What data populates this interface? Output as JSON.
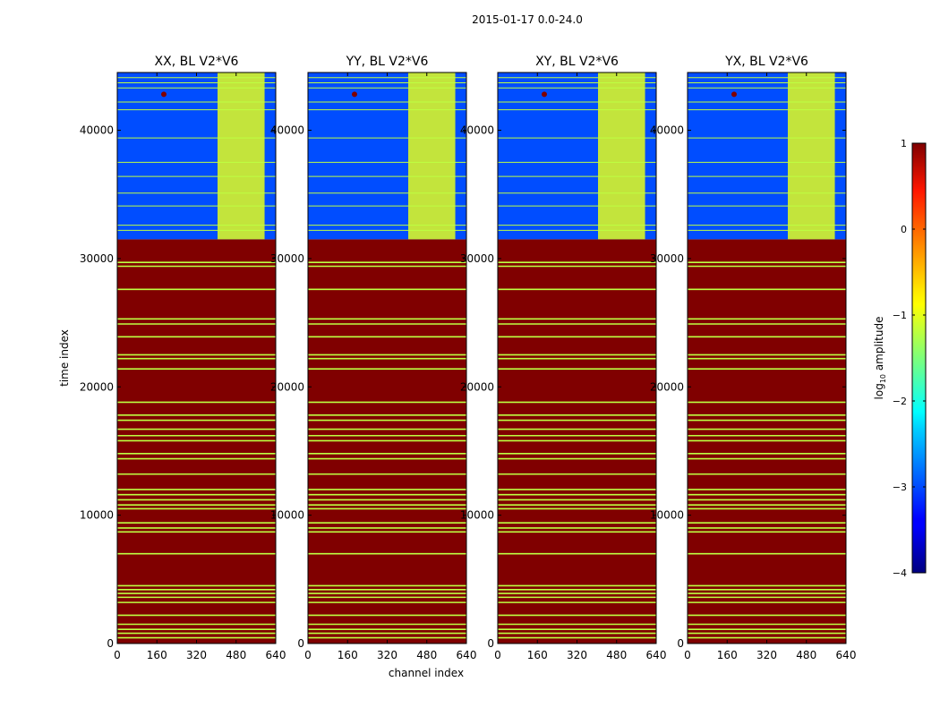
{
  "figure": {
    "suptitle": "2015-01-17 0.0-24.0"
  },
  "chart_data": {
    "type": "heatmap",
    "title": "2015-01-17 0.0-24.0",
    "xlabel": "channel index",
    "ylabel": "time index",
    "xlim": [
      0,
      640
    ],
    "ylim": [
      0,
      44500
    ],
    "x_ticks": [
      0,
      160,
      320,
      480,
      640
    ],
    "y_ticks": [
      0,
      10000,
      20000,
      30000,
      40000
    ],
    "x_tick_labels": [
      "0",
      "160",
      "320",
      "480",
      "640"
    ],
    "y_tick_labels": [
      "0",
      "10000",
      "20000",
      "30000",
      "40000"
    ],
    "panels": [
      {
        "name": "XX",
        "title": "XX, BL V2*V6"
      },
      {
        "name": "YY",
        "title": "YY, BL V2*V6"
      },
      {
        "name": "XY",
        "title": "XY, BL V2*V6"
      },
      {
        "name": "YX",
        "title": "YX, BL V2*V6"
      }
    ],
    "regions": {
      "saturated_time_range": [
        0,
        31500
      ],
      "saturated_log_amplitude": 1,
      "active_time_range": [
        31500,
        44500
      ],
      "background_log_amplitude": -3,
      "rfi_channel_range": [
        405,
        595
      ],
      "rfi_log_amplitude": -1,
      "rfi_spot_channel": 188,
      "rfi_spot_time": 42800
    },
    "flagged_rows_low": [
      450,
      800,
      1100,
      1500,
      2200,
      3200,
      3600,
      3900,
      4200,
      4500,
      7000,
      8700,
      9000,
      9400,
      10500,
      10800,
      11200,
      11600,
      12000,
      13200,
      14400,
      14800,
      15800,
      16200,
      16700,
      17400,
      17800,
      18800,
      21400,
      22200,
      22500,
      23900,
      24900,
      25300,
      27600,
      29400,
      29700
    ],
    "flagged_rows_high": [
      32200,
      32600,
      34100,
      35100,
      36400,
      37500,
      39400,
      41600,
      42200,
      43300,
      43700,
      44100
    ],
    "colorbar": {
      "label": "log10 amplitude",
      "label_base": "log",
      "label_sub": "10",
      "label_rest": " amplitude",
      "range": [
        -4,
        1
      ],
      "ticks": [
        1,
        0,
        -1,
        -2,
        -3,
        -4
      ],
      "tick_labels": [
        "1",
        "0",
        "−1",
        "−2",
        "−3",
        "−4"
      ]
    }
  }
}
